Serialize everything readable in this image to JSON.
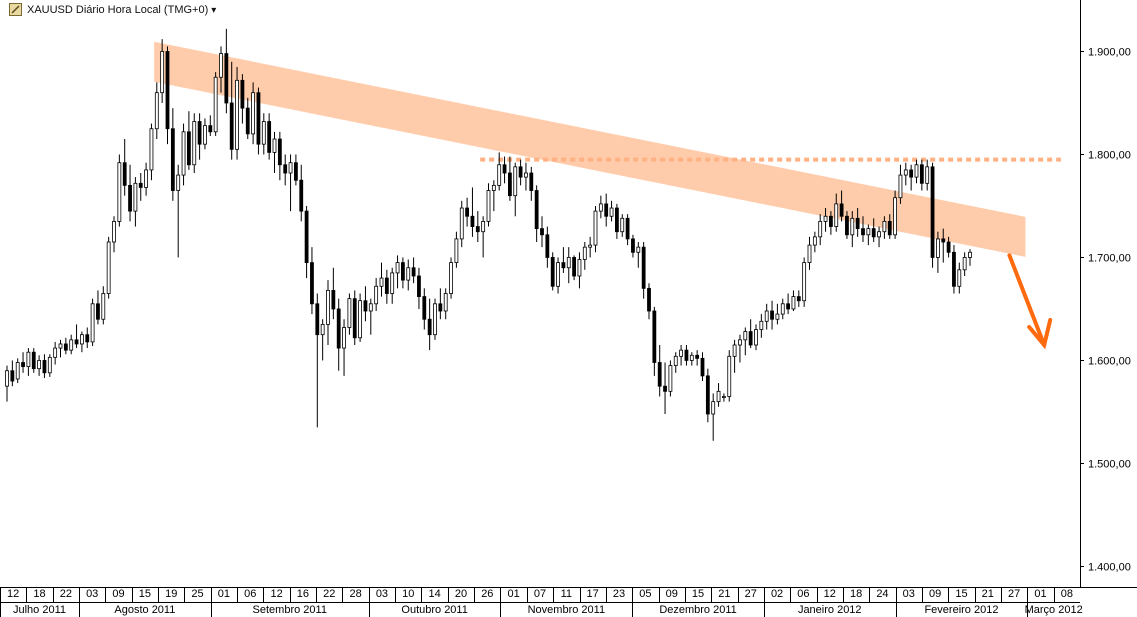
{
  "header": {
    "title": "XAUUSD Diário Hora Local (TMG+0)",
    "dropdown_glyph": "▾",
    "icon": "chart-symbol-icon"
  },
  "colors": {
    "bull": "#ffffff",
    "bear": "#000000",
    "wick": "#000000",
    "channel": "#ffc9a6",
    "resistance": "#ffb183",
    "arrow": "#ff6a0f",
    "grid": "#000000"
  },
  "chart_data": {
    "type": "candlestick",
    "symbol": "XAUUSD",
    "ylim": [
      1380,
      1950
    ],
    "y_ticks": [
      "1.400,00",
      "1.500,00",
      "1.600,00",
      "1.700,00",
      "1.800,00",
      "1.900,00"
    ],
    "y_tick_values": [
      1400,
      1500,
      1600,
      1700,
      1800,
      1900
    ],
    "x_day_labels": [
      "12",
      "18",
      "22",
      "03",
      "09",
      "15",
      "19",
      "25",
      "01",
      "06",
      "12",
      "16",
      "22",
      "28",
      "03",
      "10",
      "14",
      "20",
      "26",
      "01",
      "07",
      "11",
      "17",
      "23",
      "05",
      "09",
      "15",
      "21",
      "27",
      "02",
      "06",
      "12",
      "18",
      "24",
      "03",
      "09",
      "15",
      "21",
      "27",
      "01",
      "08"
    ],
    "x_month_labels": [
      "Julho 2011",
      "Agosto 2011",
      "Setembro 2011",
      "Outubro 2011",
      "Novembro 2011",
      "Dezembro 2011",
      "Janeiro 2012",
      "Fevereiro 2012",
      "Março 2012"
    ],
    "candles": [
      {
        "o": 1575,
        "h": 1595,
        "l": 1560,
        "c": 1590
      },
      {
        "o": 1590,
        "h": 1600,
        "l": 1575,
        "c": 1580
      },
      {
        "o": 1582,
        "h": 1602,
        "l": 1578,
        "c": 1598
      },
      {
        "o": 1598,
        "h": 1608,
        "l": 1588,
        "c": 1594
      },
      {
        "o": 1594,
        "h": 1612,
        "l": 1585,
        "c": 1608
      },
      {
        "o": 1608,
        "h": 1612,
        "l": 1588,
        "c": 1592
      },
      {
        "o": 1592,
        "h": 1605,
        "l": 1585,
        "c": 1600
      },
      {
        "o": 1600,
        "h": 1606,
        "l": 1583,
        "c": 1588
      },
      {
        "o": 1588,
        "h": 1606,
        "l": 1584,
        "c": 1603
      },
      {
        "o": 1603,
        "h": 1618,
        "l": 1596,
        "c": 1612
      },
      {
        "o": 1612,
        "h": 1620,
        "l": 1603,
        "c": 1616
      },
      {
        "o": 1616,
        "h": 1622,
        "l": 1606,
        "c": 1610
      },
      {
        "o": 1610,
        "h": 1625,
        "l": 1606,
        "c": 1620
      },
      {
        "o": 1620,
        "h": 1635,
        "l": 1612,
        "c": 1616
      },
      {
        "o": 1616,
        "h": 1628,
        "l": 1608,
        "c": 1625
      },
      {
        "o": 1625,
        "h": 1632,
        "l": 1612,
        "c": 1618
      },
      {
        "o": 1618,
        "h": 1660,
        "l": 1614,
        "c": 1655
      },
      {
        "o": 1655,
        "h": 1668,
        "l": 1635,
        "c": 1640
      },
      {
        "o": 1640,
        "h": 1672,
        "l": 1635,
        "c": 1665
      },
      {
        "o": 1665,
        "h": 1720,
        "l": 1660,
        "c": 1715
      },
      {
        "o": 1715,
        "h": 1740,
        "l": 1705,
        "c": 1735
      },
      {
        "o": 1735,
        "h": 1800,
        "l": 1730,
        "c": 1792
      },
      {
        "o": 1792,
        "h": 1815,
        "l": 1760,
        "c": 1770
      },
      {
        "o": 1770,
        "h": 1790,
        "l": 1735,
        "c": 1745
      },
      {
        "o": 1745,
        "h": 1778,
        "l": 1730,
        "c": 1772
      },
      {
        "o": 1772,
        "h": 1782,
        "l": 1755,
        "c": 1768
      },
      {
        "o": 1768,
        "h": 1792,
        "l": 1760,
        "c": 1785
      },
      {
        "o": 1785,
        "h": 1830,
        "l": 1775,
        "c": 1825
      },
      {
        "o": 1825,
        "h": 1870,
        "l": 1815,
        "c": 1860
      },
      {
        "o": 1860,
        "h": 1912,
        "l": 1850,
        "c": 1900
      },
      {
        "o": 1900,
        "h": 1905,
        "l": 1810,
        "c": 1825
      },
      {
        "o": 1825,
        "h": 1845,
        "l": 1755,
        "c": 1765
      },
      {
        "o": 1765,
        "h": 1790,
        "l": 1700,
        "c": 1780
      },
      {
        "o": 1780,
        "h": 1830,
        "l": 1770,
        "c": 1822
      },
      {
        "o": 1822,
        "h": 1842,
        "l": 1785,
        "c": 1790
      },
      {
        "o": 1790,
        "h": 1840,
        "l": 1782,
        "c": 1832
      },
      {
        "o": 1832,
        "h": 1840,
        "l": 1795,
        "c": 1810
      },
      {
        "o": 1810,
        "h": 1835,
        "l": 1805,
        "c": 1828
      },
      {
        "o": 1828,
        "h": 1838,
        "l": 1818,
        "c": 1822
      },
      {
        "o": 1822,
        "h": 1880,
        "l": 1818,
        "c": 1875
      },
      {
        "o": 1875,
        "h": 1905,
        "l": 1860,
        "c": 1898
      },
      {
        "o": 1898,
        "h": 1922,
        "l": 1840,
        "c": 1850
      },
      {
        "o": 1850,
        "h": 1890,
        "l": 1795,
        "c": 1805
      },
      {
        "o": 1805,
        "h": 1885,
        "l": 1795,
        "c": 1872
      },
      {
        "o": 1872,
        "h": 1878,
        "l": 1830,
        "c": 1845
      },
      {
        "o": 1845,
        "h": 1855,
        "l": 1815,
        "c": 1820
      },
      {
        "o": 1820,
        "h": 1870,
        "l": 1810,
        "c": 1860
      },
      {
        "o": 1860,
        "h": 1865,
        "l": 1800,
        "c": 1810
      },
      {
        "o": 1810,
        "h": 1840,
        "l": 1800,
        "c": 1832
      },
      {
        "o": 1832,
        "h": 1840,
        "l": 1795,
        "c": 1802
      },
      {
        "o": 1802,
        "h": 1822,
        "l": 1782,
        "c": 1815
      },
      {
        "o": 1815,
        "h": 1822,
        "l": 1775,
        "c": 1790
      },
      {
        "o": 1790,
        "h": 1800,
        "l": 1770,
        "c": 1782
      },
      {
        "o": 1782,
        "h": 1800,
        "l": 1745,
        "c": 1792
      },
      {
        "o": 1792,
        "h": 1800,
        "l": 1770,
        "c": 1775
      },
      {
        "o": 1775,
        "h": 1790,
        "l": 1735,
        "c": 1745
      },
      {
        "o": 1745,
        "h": 1750,
        "l": 1680,
        "c": 1695
      },
      {
        "o": 1695,
        "h": 1710,
        "l": 1645,
        "c": 1655
      },
      {
        "o": 1655,
        "h": 1665,
        "l": 1535,
        "c": 1625
      },
      {
        "o": 1625,
        "h": 1640,
        "l": 1600,
        "c": 1635
      },
      {
        "o": 1635,
        "h": 1678,
        "l": 1615,
        "c": 1668
      },
      {
        "o": 1668,
        "h": 1690,
        "l": 1640,
        "c": 1650
      },
      {
        "o": 1650,
        "h": 1660,
        "l": 1590,
        "c": 1612
      },
      {
        "o": 1612,
        "h": 1640,
        "l": 1585,
        "c": 1632
      },
      {
        "o": 1632,
        "h": 1665,
        "l": 1625,
        "c": 1660
      },
      {
        "o": 1660,
        "h": 1668,
        "l": 1615,
        "c": 1622
      },
      {
        "o": 1622,
        "h": 1665,
        "l": 1618,
        "c": 1658
      },
      {
        "o": 1658,
        "h": 1672,
        "l": 1638,
        "c": 1648
      },
      {
        "o": 1648,
        "h": 1660,
        "l": 1625,
        "c": 1655
      },
      {
        "o": 1655,
        "h": 1680,
        "l": 1648,
        "c": 1672
      },
      {
        "o": 1672,
        "h": 1695,
        "l": 1662,
        "c": 1680
      },
      {
        "o": 1680,
        "h": 1688,
        "l": 1655,
        "c": 1665
      },
      {
        "o": 1665,
        "h": 1690,
        "l": 1655,
        "c": 1685
      },
      {
        "o": 1685,
        "h": 1702,
        "l": 1670,
        "c": 1695
      },
      {
        "o": 1695,
        "h": 1700,
        "l": 1670,
        "c": 1678
      },
      {
        "o": 1678,
        "h": 1698,
        "l": 1668,
        "c": 1690
      },
      {
        "o": 1690,
        "h": 1700,
        "l": 1675,
        "c": 1682
      },
      {
        "o": 1682,
        "h": 1690,
        "l": 1650,
        "c": 1662
      },
      {
        "o": 1662,
        "h": 1670,
        "l": 1630,
        "c": 1640
      },
      {
        "o": 1640,
        "h": 1660,
        "l": 1610,
        "c": 1625
      },
      {
        "o": 1625,
        "h": 1660,
        "l": 1620,
        "c": 1655
      },
      {
        "o": 1655,
        "h": 1670,
        "l": 1640,
        "c": 1648
      },
      {
        "o": 1648,
        "h": 1670,
        "l": 1640,
        "c": 1665
      },
      {
        "o": 1665,
        "h": 1700,
        "l": 1660,
        "c": 1695
      },
      {
        "o": 1695,
        "h": 1725,
        "l": 1690,
        "c": 1718
      },
      {
        "o": 1718,
        "h": 1755,
        "l": 1710,
        "c": 1748
      },
      {
        "o": 1748,
        "h": 1758,
        "l": 1730,
        "c": 1740
      },
      {
        "o": 1740,
        "h": 1768,
        "l": 1720,
        "c": 1730
      },
      {
        "o": 1730,
        "h": 1745,
        "l": 1715,
        "c": 1725
      },
      {
        "o": 1725,
        "h": 1740,
        "l": 1700,
        "c": 1735
      },
      {
        "o": 1735,
        "h": 1772,
        "l": 1730,
        "c": 1765
      },
      {
        "o": 1765,
        "h": 1775,
        "l": 1745,
        "c": 1770
      },
      {
        "o": 1770,
        "h": 1802,
        "l": 1765,
        "c": 1790
      },
      {
        "o": 1790,
        "h": 1798,
        "l": 1772,
        "c": 1782
      },
      {
        "o": 1782,
        "h": 1798,
        "l": 1755,
        "c": 1760
      },
      {
        "o": 1760,
        "h": 1792,
        "l": 1740,
        "c": 1788
      },
      {
        "o": 1788,
        "h": 1795,
        "l": 1770,
        "c": 1778
      },
      {
        "o": 1778,
        "h": 1792,
        "l": 1765,
        "c": 1782
      },
      {
        "o": 1782,
        "h": 1788,
        "l": 1755,
        "c": 1765
      },
      {
        "o": 1765,
        "h": 1770,
        "l": 1715,
        "c": 1728
      },
      {
        "o": 1728,
        "h": 1740,
        "l": 1710,
        "c": 1722
      },
      {
        "o": 1722,
        "h": 1730,
        "l": 1690,
        "c": 1700
      },
      {
        "o": 1700,
        "h": 1705,
        "l": 1668,
        "c": 1672
      },
      {
        "o": 1672,
        "h": 1700,
        "l": 1665,
        "c": 1695
      },
      {
        "o": 1695,
        "h": 1710,
        "l": 1685,
        "c": 1690
      },
      {
        "o": 1690,
        "h": 1710,
        "l": 1675,
        "c": 1700
      },
      {
        "o": 1700,
        "h": 1702,
        "l": 1678,
        "c": 1682
      },
      {
        "o": 1682,
        "h": 1705,
        "l": 1670,
        "c": 1698
      },
      {
        "o": 1698,
        "h": 1715,
        "l": 1688,
        "c": 1710
      },
      {
        "o": 1710,
        "h": 1720,
        "l": 1700,
        "c": 1712
      },
      {
        "o": 1712,
        "h": 1750,
        "l": 1705,
        "c": 1745
      },
      {
        "o": 1745,
        "h": 1760,
        "l": 1738,
        "c": 1752
      },
      {
        "o": 1752,
        "h": 1762,
        "l": 1730,
        "c": 1740
      },
      {
        "o": 1740,
        "h": 1755,
        "l": 1735,
        "c": 1748
      },
      {
        "o": 1748,
        "h": 1752,
        "l": 1718,
        "c": 1725
      },
      {
        "o": 1725,
        "h": 1742,
        "l": 1720,
        "c": 1738
      },
      {
        "o": 1738,
        "h": 1742,
        "l": 1712,
        "c": 1718
      },
      {
        "o": 1718,
        "h": 1722,
        "l": 1700,
        "c": 1705
      },
      {
        "o": 1705,
        "h": 1715,
        "l": 1690,
        "c": 1710
      },
      {
        "o": 1710,
        "h": 1715,
        "l": 1660,
        "c": 1670
      },
      {
        "o": 1670,
        "h": 1675,
        "l": 1640,
        "c": 1648
      },
      {
        "o": 1648,
        "h": 1652,
        "l": 1585,
        "c": 1598
      },
      {
        "o": 1598,
        "h": 1615,
        "l": 1565,
        "c": 1575
      },
      {
        "o": 1575,
        "h": 1598,
        "l": 1548,
        "c": 1570
      },
      {
        "o": 1570,
        "h": 1600,
        "l": 1565,
        "c": 1595
      },
      {
        "o": 1595,
        "h": 1608,
        "l": 1588,
        "c": 1604
      },
      {
        "o": 1604,
        "h": 1615,
        "l": 1595,
        "c": 1610
      },
      {
        "o": 1610,
        "h": 1615,
        "l": 1595,
        "c": 1600
      },
      {
        "o": 1600,
        "h": 1608,
        "l": 1595,
        "c": 1605
      },
      {
        "o": 1605,
        "h": 1610,
        "l": 1595,
        "c": 1602
      },
      {
        "o": 1602,
        "h": 1608,
        "l": 1580,
        "c": 1585
      },
      {
        "o": 1585,
        "h": 1592,
        "l": 1540,
        "c": 1548
      },
      {
        "o": 1548,
        "h": 1568,
        "l": 1522,
        "c": 1560
      },
      {
        "o": 1560,
        "h": 1578,
        "l": 1555,
        "c": 1570
      },
      {
        "o": 1565,
        "h": 1568,
        "l": 1560,
        "c": 1565
      },
      {
        "o": 1565,
        "h": 1610,
        "l": 1560,
        "c": 1604
      },
      {
        "o": 1604,
        "h": 1620,
        "l": 1588,
        "c": 1615
      },
      {
        "o": 1615,
        "h": 1625,
        "l": 1598,
        "c": 1620
      },
      {
        "o": 1620,
        "h": 1632,
        "l": 1605,
        "c": 1628
      },
      {
        "o": 1628,
        "h": 1640,
        "l": 1612,
        "c": 1615
      },
      {
        "o": 1615,
        "h": 1635,
        "l": 1610,
        "c": 1630
      },
      {
        "o": 1630,
        "h": 1645,
        "l": 1622,
        "c": 1638
      },
      {
        "o": 1638,
        "h": 1655,
        "l": 1630,
        "c": 1648
      },
      {
        "o": 1648,
        "h": 1658,
        "l": 1630,
        "c": 1640
      },
      {
        "o": 1640,
        "h": 1655,
        "l": 1635,
        "c": 1645
      },
      {
        "o": 1645,
        "h": 1660,
        "l": 1640,
        "c": 1655
      },
      {
        "o": 1655,
        "h": 1665,
        "l": 1645,
        "c": 1650
      },
      {
        "o": 1650,
        "h": 1668,
        "l": 1648,
        "c": 1662
      },
      {
        "o": 1662,
        "h": 1668,
        "l": 1652,
        "c": 1658
      },
      {
        "o": 1658,
        "h": 1700,
        "l": 1652,
        "c": 1695
      },
      {
        "o": 1695,
        "h": 1720,
        "l": 1688,
        "c": 1712
      },
      {
        "o": 1712,
        "h": 1725,
        "l": 1705,
        "c": 1720
      },
      {
        "o": 1720,
        "h": 1742,
        "l": 1712,
        "c": 1735
      },
      {
        "o": 1735,
        "h": 1748,
        "l": 1725,
        "c": 1740
      },
      {
        "o": 1740,
        "h": 1745,
        "l": 1722,
        "c": 1730
      },
      {
        "o": 1730,
        "h": 1762,
        "l": 1725,
        "c": 1752
      },
      {
        "o": 1752,
        "h": 1765,
        "l": 1735,
        "c": 1740
      },
      {
        "o": 1740,
        "h": 1745,
        "l": 1718,
        "c": 1722
      },
      {
        "o": 1722,
        "h": 1745,
        "l": 1710,
        "c": 1738
      },
      {
        "o": 1738,
        "h": 1748,
        "l": 1720,
        "c": 1728
      },
      {
        "o": 1728,
        "h": 1740,
        "l": 1715,
        "c": 1722
      },
      {
        "o": 1722,
        "h": 1732,
        "l": 1712,
        "c": 1728
      },
      {
        "o": 1728,
        "h": 1738,
        "l": 1715,
        "c": 1720
      },
      {
        "o": 1720,
        "h": 1730,
        "l": 1710,
        "c": 1725
      },
      {
        "o": 1725,
        "h": 1740,
        "l": 1718,
        "c": 1735
      },
      {
        "o": 1735,
        "h": 1742,
        "l": 1718,
        "c": 1722
      },
      {
        "o": 1722,
        "h": 1765,
        "l": 1718,
        "c": 1758
      },
      {
        "o": 1758,
        "h": 1790,
        "l": 1752,
        "c": 1780
      },
      {
        "o": 1780,
        "h": 1792,
        "l": 1770,
        "c": 1785
      },
      {
        "o": 1785,
        "h": 1790,
        "l": 1765,
        "c": 1778
      },
      {
        "o": 1778,
        "h": 1795,
        "l": 1772,
        "c": 1790
      },
      {
        "o": 1790,
        "h": 1795,
        "l": 1765,
        "c": 1772
      },
      {
        "o": 1772,
        "h": 1795,
        "l": 1765,
        "c": 1788
      },
      {
        "o": 1788,
        "h": 1792,
        "l": 1690,
        "c": 1700
      },
      {
        "o": 1700,
        "h": 1725,
        "l": 1685,
        "c": 1718
      },
      {
        "o": 1718,
        "h": 1728,
        "l": 1695,
        "c": 1715
      },
      {
        "o": 1715,
        "h": 1720,
        "l": 1700,
        "c": 1705
      },
      {
        "o": 1705,
        "h": 1712,
        "l": 1665,
        "c": 1672
      },
      {
        "o": 1672,
        "h": 1695,
        "l": 1665,
        "c": 1688
      },
      {
        "o": 1688,
        "h": 1705,
        "l": 1682,
        "c": 1700
      },
      {
        "o": 1700,
        "h": 1708,
        "l": 1692,
        "c": 1705
      }
    ],
    "annotations": [
      {
        "type": "descending-channel-band",
        "from": {
          "candle": 29,
          "price": 1890
        },
        "to": {
          "candle": 187,
          "price": 1720
        },
        "color": "#ffc9a6"
      },
      {
        "type": "horizontal-dotted-resistance",
        "price": 1795,
        "from_candle": 89,
        "to_candle": 197,
        "color": "#ffb183"
      },
      {
        "type": "downward-arrow",
        "from": {
          "candle": 187,
          "price": 1702
        },
        "to": {
          "candle": 192,
          "price": 1615
        },
        "color": "#ff6a0f"
      }
    ]
  }
}
